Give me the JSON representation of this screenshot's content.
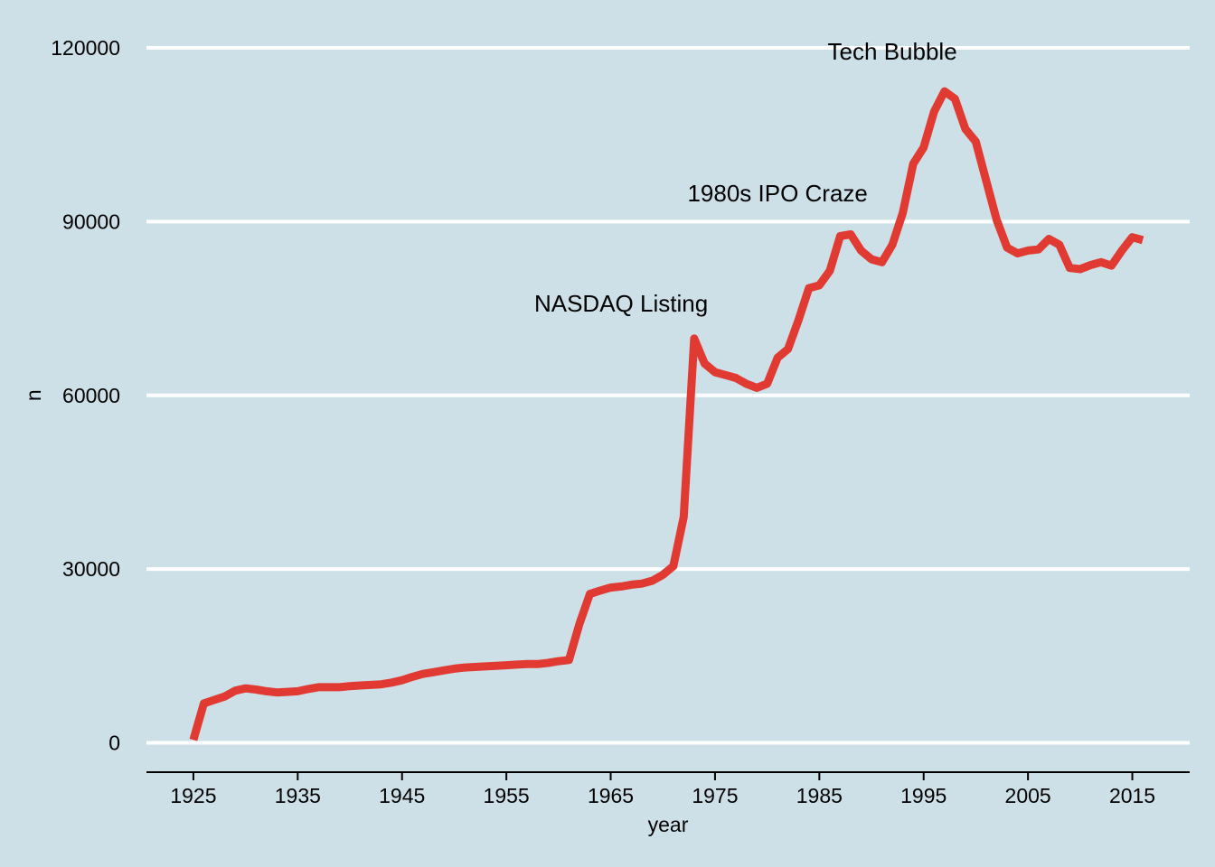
{
  "chart_data": {
    "type": "line",
    "xlabel": "year",
    "ylabel": "n",
    "xlim": [
      1920.5,
      2020.5
    ],
    "ylim": [
      -5000,
      120000
    ],
    "x_ticks": [
      1925,
      1935,
      1945,
      1955,
      1965,
      1975,
      1985,
      1995,
      2005,
      2015
    ],
    "y_ticks": [
      0,
      30000,
      60000,
      90000,
      120000
    ],
    "grid": "horizontal",
    "line_color": "#e03a33",
    "background_color": "#cde0e7",
    "series": [
      {
        "x": [
          1925,
          1926,
          1927,
          1928,
          1929,
          1930,
          1931,
          1932,
          1933,
          1934,
          1935,
          1936,
          1937,
          1938,
          1939,
          1940,
          1941,
          1942,
          1943,
          1944,
          1945,
          1946,
          1947,
          1948,
          1949,
          1950,
          1951,
          1952,
          1953,
          1954,
          1955,
          1956,
          1957,
          1958,
          1959,
          1960,
          1961,
          1962,
          1963,
          1964,
          1965,
          1966,
          1967,
          1968,
          1969,
          1970,
          1971,
          1972,
          1973,
          1974,
          1975,
          1976,
          1977,
          1978,
          1979,
          1980,
          1981,
          1982,
          1983,
          1984,
          1985,
          1986,
          1987,
          1988,
          1989,
          1990,
          1991,
          1992,
          1993,
          1994,
          1995,
          1996,
          1997,
          1998,
          1999,
          2000,
          2001,
          2002,
          2003,
          2004,
          2005,
          2006,
          2007,
          2008,
          2009,
          2010,
          2011,
          2012,
          2013,
          2014,
          2015,
          2016
        ],
        "values": [
          500,
          6800,
          7400,
          8000,
          9000,
          9400,
          9200,
          8900,
          8700,
          8800,
          8900,
          9300,
          9600,
          9600,
          9600,
          9800,
          9900,
          10000,
          10100,
          10400,
          10800,
          11400,
          11900,
          12200,
          12500,
          12800,
          13000,
          13100,
          13200,
          13300,
          13400,
          13500,
          13600,
          13600,
          13800,
          14100,
          14300,
          20500,
          25700,
          26300,
          26800,
          27000,
          27300,
          27500,
          28000,
          29000,
          30500,
          39000,
          69800,
          65500,
          64000,
          63500,
          63000,
          62000,
          61300,
          62000,
          66500,
          68000,
          73000,
          78500,
          79000,
          81500,
          87500,
          87800,
          85000,
          83500,
          83000,
          86000,
          91500,
          100000,
          102800,
          109000,
          112500,
          111200,
          106000,
          103800,
          97000,
          90300,
          85500,
          84500,
          85000,
          85200,
          87000,
          86000,
          82000,
          81800,
          82500,
          83000,
          82400,
          85000,
          87300,
          86800
        ]
      }
    ],
    "annotations": [
      {
        "text": "NASDAQ Listing",
        "x": 1966,
        "y": 74500
      },
      {
        "text": "1980s IPO Craze",
        "x": 1981,
        "y": 93500
      },
      {
        "text": "Tech Bubble",
        "x": 1992,
        "y": 118000
      }
    ]
  }
}
